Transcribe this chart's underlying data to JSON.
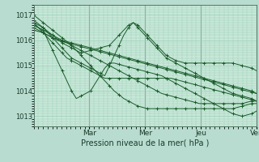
{
  "xlabel": "Pression niveau de la mer( hPa )",
  "bg_color": "#b8ddd0",
  "plot_bg_color": "#c8e8d8",
  "grid_color": "#99ccbb",
  "line_color": "#1a5c2a",
  "ylim": [
    1012.6,
    1017.4
  ],
  "yticks": [
    1013,
    1014,
    1015,
    1016,
    1017
  ],
  "day_labels": [
    "Mar",
    "Mer",
    "Jeu",
    "Ven"
  ],
  "day_positions": [
    0.25,
    0.5,
    0.75,
    1.0
  ],
  "n_points": 48,
  "series": [
    [
      1017.0,
      1016.85,
      1016.7,
      1016.55,
      1016.4,
      1016.25,
      1016.1,
      1015.95,
      1015.8,
      1015.6,
      1015.4,
      1015.2,
      1015.0,
      1014.8,
      1014.6,
      1014.4,
      1014.2,
      1014.0,
      1013.85,
      1013.7,
      1013.6,
      1013.5,
      1013.4,
      1013.35,
      1013.3,
      1013.3,
      1013.3,
      1013.3,
      1013.3,
      1013.3,
      1013.3,
      1013.3,
      1013.3,
      1013.3,
      1013.3,
      1013.3,
      1013.3,
      1013.3,
      1013.3,
      1013.3,
      1013.3,
      1013.3,
      1013.3,
      1013.35,
      1013.4,
      1013.45,
      1013.5,
      1013.5
    ],
    [
      1016.6,
      1016.5,
      1016.4,
      1016.3,
      1016.2,
      1016.1,
      1016.0,
      1015.9,
      1015.8,
      1015.7,
      1015.6,
      1015.5,
      1015.4,
      1015.3,
      1015.2,
      1015.1,
      1015.0,
      1014.9,
      1014.8,
      1014.7,
      1014.6,
      1014.5,
      1014.4,
      1014.3,
      1014.2,
      1014.1,
      1014.0,
      1013.9,
      1013.85,
      1013.8,
      1013.75,
      1013.7,
      1013.65,
      1013.6,
      1013.55,
      1013.5,
      1013.5,
      1013.5,
      1013.5,
      1013.5,
      1013.5,
      1013.5,
      1013.5,
      1013.5,
      1013.5,
      1013.55,
      1013.6,
      1013.6
    ],
    [
      1016.5,
      1016.4,
      1016.3,
      1016.2,
      1016.1,
      1016.0,
      1015.95,
      1015.9,
      1015.85,
      1015.8,
      1015.75,
      1015.7,
      1015.65,
      1015.6,
      1015.55,
      1015.5,
      1015.45,
      1015.4,
      1015.35,
      1015.3,
      1015.25,
      1015.2,
      1015.15,
      1015.1,
      1015.05,
      1015.0,
      1014.95,
      1014.9,
      1014.85,
      1014.8,
      1014.75,
      1014.7,
      1014.65,
      1014.6,
      1014.55,
      1014.5,
      1014.45,
      1014.4,
      1014.35,
      1014.3,
      1014.25,
      1014.2,
      1014.15,
      1014.1,
      1014.05,
      1014.0,
      1013.95,
      1013.9
    ],
    [
      1016.4,
      1016.35,
      1016.3,
      1016.2,
      1016.1,
      1016.05,
      1016.0,
      1015.95,
      1015.9,
      1015.85,
      1015.8,
      1015.75,
      1015.7,
      1015.65,
      1015.6,
      1015.55,
      1015.5,
      1015.45,
      1015.4,
      1015.35,
      1015.3,
      1015.25,
      1015.2,
      1015.15,
      1015.1,
      1015.05,
      1015.0,
      1014.95,
      1014.9,
      1014.85,
      1014.8,
      1014.75,
      1014.7,
      1014.65,
      1014.6,
      1014.55,
      1014.5,
      1014.45,
      1014.4,
      1014.35,
      1014.3,
      1014.25,
      1014.2,
      1014.15,
      1014.1,
      1014.05,
      1014.0,
      1013.9
    ],
    [
      1016.7,
      1016.6,
      1016.5,
      1016.3,
      1016.1,
      1015.9,
      1015.7,
      1015.5,
      1015.3,
      1015.2,
      1015.1,
      1015.0,
      1014.9,
      1014.8,
      1014.7,
      1014.6,
      1015.0,
      1015.4,
      1015.8,
      1016.2,
      1016.5,
      1016.7,
      1016.5,
      1016.3,
      1016.1,
      1015.9,
      1015.7,
      1015.5,
      1015.3,
      1015.2,
      1015.1,
      1015.0,
      1014.9,
      1014.8,
      1014.7,
      1014.6,
      1014.5,
      1014.4,
      1014.3,
      1014.2,
      1014.1,
      1014.0,
      1013.9,
      1013.85,
      1013.8,
      1013.75,
      1013.7,
      1013.6
    ],
    [
      1016.8,
      1016.65,
      1016.5,
      1016.35,
      1016.2,
      1016.05,
      1015.9,
      1015.8,
      1015.7,
      1015.6,
      1015.5,
      1015.55,
      1015.6,
      1015.65,
      1015.7,
      1015.75,
      1015.8,
      1016.0,
      1016.2,
      1016.4,
      1016.6,
      1016.7,
      1016.6,
      1016.4,
      1016.2,
      1016.0,
      1015.8,
      1015.6,
      1015.4,
      1015.3,
      1015.2,
      1015.15,
      1015.1,
      1015.1,
      1015.1,
      1015.1,
      1015.1,
      1015.1,
      1015.1,
      1015.1,
      1015.1,
      1015.1,
      1015.1,
      1015.05,
      1015.0,
      1014.95,
      1014.9,
      1014.8
    ],
    [
      1016.7,
      1016.5,
      1016.3,
      1016.1,
      1015.9,
      1015.7,
      1015.5,
      1015.3,
      1015.2,
      1015.1,
      1015.0,
      1014.9,
      1014.8,
      1014.7,
      1014.6,
      1014.5,
      1014.5,
      1014.5,
      1014.5,
      1014.5,
      1014.5,
      1014.5,
      1014.5,
      1014.5,
      1014.5,
      1014.5,
      1014.5,
      1014.5,
      1014.5,
      1014.5,
      1014.45,
      1014.4,
      1014.35,
      1014.3,
      1014.25,
      1014.2,
      1014.15,
      1014.1,
      1014.05,
      1014.0,
      1013.95,
      1013.9,
      1013.85,
      1013.8,
      1013.75,
      1013.7,
      1013.65,
      1013.6
    ],
    [
      1016.6,
      1016.5,
      1016.4,
      1016.0,
      1015.6,
      1015.2,
      1014.8,
      1014.4,
      1014.0,
      1013.7,
      1013.8,
      1013.9,
      1014.0,
      1014.3,
      1014.6,
      1014.9,
      1015.1,
      1015.1,
      1015.05,
      1015.0,
      1014.95,
      1014.9,
      1014.85,
      1014.8,
      1014.75,
      1014.7,
      1014.65,
      1014.6,
      1014.5,
      1014.4,
      1014.3,
      1014.2,
      1014.1,
      1014.0,
      1013.9,
      1013.8,
      1013.7,
      1013.6,
      1013.5,
      1013.4,
      1013.3,
      1013.2,
      1013.1,
      1013.05,
      1013.0,
      1013.05,
      1013.1,
      1013.2
    ]
  ]
}
